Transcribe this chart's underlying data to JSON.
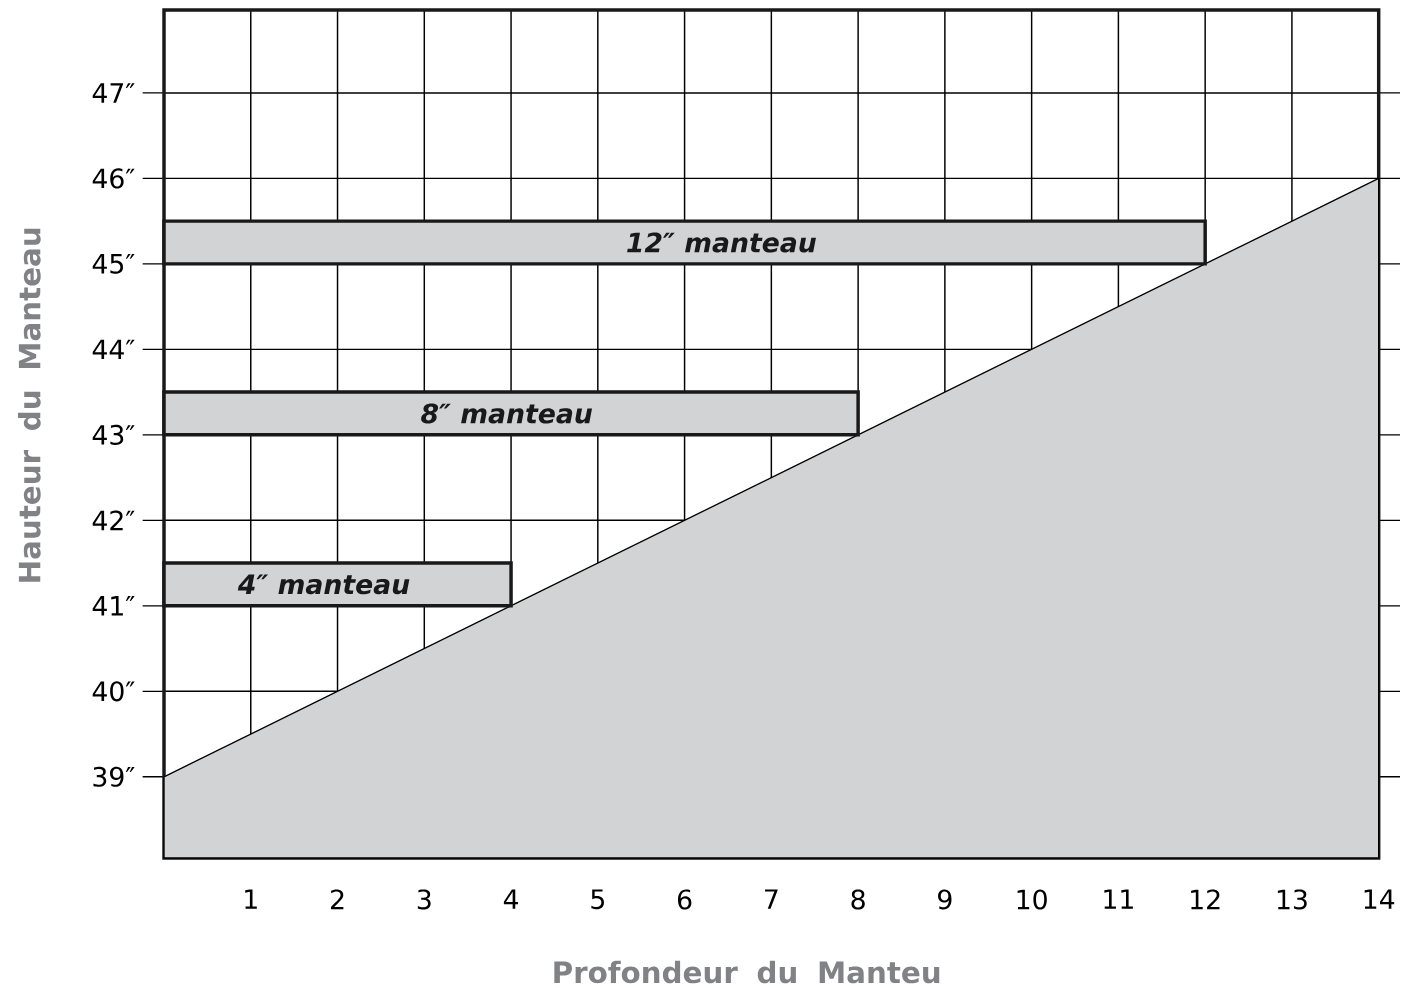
{
  "chart_data": {
    "type": "area",
    "xlabel": "Profondeur du Manteu",
    "ylabel": "Hauteur du Manteau",
    "xlim": [
      0,
      14
    ],
    "ylim": [
      38.05,
      47.97
    ],
    "xticks": [
      1,
      2,
      3,
      4,
      5,
      6,
      7,
      8,
      9,
      10,
      11,
      12,
      13,
      14
    ],
    "yticks": [
      {
        "value": 39,
        "label": "39″"
      },
      {
        "value": 40,
        "label": "40″"
      },
      {
        "value": 41,
        "label": "41″"
      },
      {
        "value": 42,
        "label": "42″"
      },
      {
        "value": 43,
        "label": "43″"
      },
      {
        "value": 44,
        "label": "44″"
      },
      {
        "value": 45,
        "label": "45″"
      },
      {
        "value": 46,
        "label": "46″"
      },
      {
        "value": 47,
        "label": "47″"
      }
    ],
    "grid": true,
    "series": [
      {
        "color": "#d1d3d4",
        "x": [
          0,
          14
        ],
        "values": [
          39,
          46
        ]
      },
      {
        "color": "#d1d3d4",
        "x": [
          0,
          0,
          4,
          4
        ],
        "values": [
          41,
          41.5,
          41.5,
          41
        ]
      },
      {
        "color": "#d1d3d4",
        "x": [
          0,
          0,
          8,
          8
        ],
        "values": [
          43,
          43.5,
          43.5,
          43
        ]
      },
      {
        "color": "#d1d3d4",
        "x": [
          0,
          0,
          12,
          12
        ],
        "values": [
          45,
          45.5,
          45.5,
          45
        ]
      }
    ],
    "annotations": [
      "4″ manteau",
      "8″ manteau",
      "12″ manteau"
    ]
  }
}
